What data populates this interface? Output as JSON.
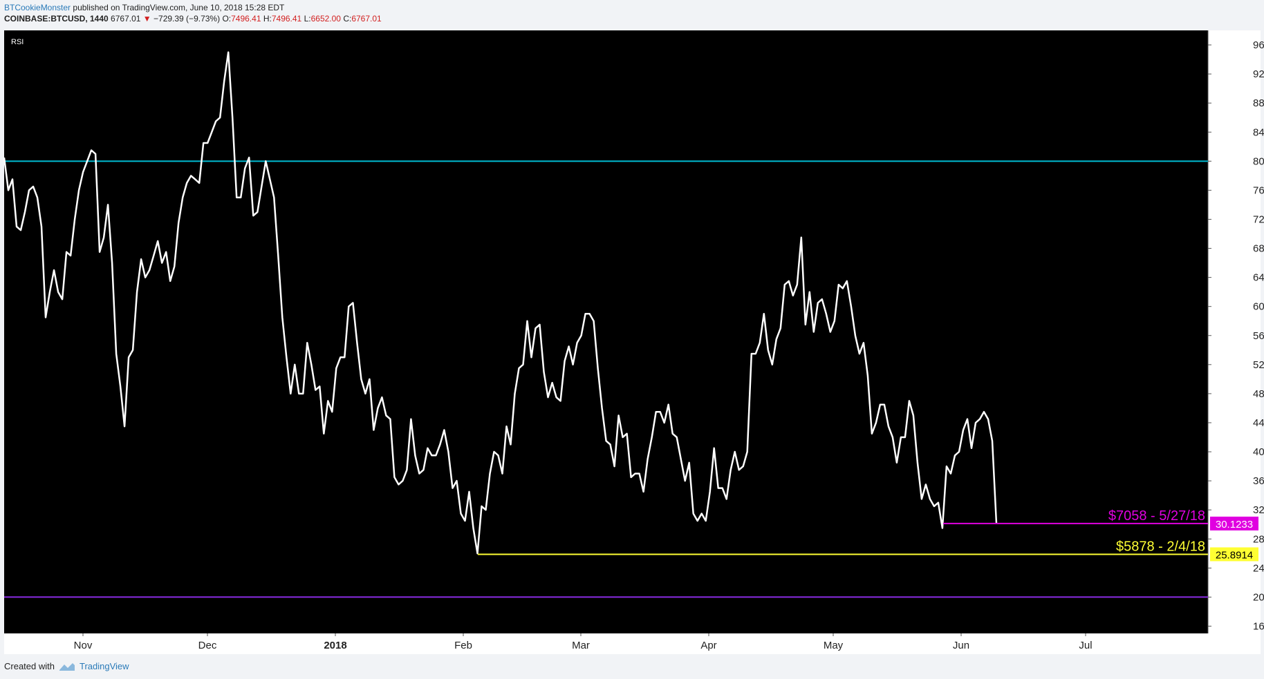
{
  "header": {
    "author": "BTCookieMonster",
    "published": "published on TradingView.com, June 10, 2018 15:28 EDT",
    "symbol": "COINBASE:BTCUSD, 1440",
    "last": "6767.01",
    "change": "−729.39 (−9.73%)",
    "o_label": "O:",
    "o": "7496.41",
    "h_label": "H:",
    "h": "7496.41",
    "l_label": "L:",
    "l": "6652.00",
    "c_label": "C:",
    "c": "6767.01"
  },
  "footer": {
    "created": "Created with",
    "brand": "TradingView"
  },
  "colors": {
    "background": "#000000",
    "line": "#ffffff",
    "overbought": "#00bcd4",
    "oversold": "#8a2be2",
    "may_level": "#e000e0",
    "feb_level": "#ffff33"
  },
  "chart_data": {
    "type": "line",
    "title": "RSI",
    "ylim": [
      15.0,
      98.0
    ],
    "y_ticks": [
      "96.0000",
      "92.0000",
      "88.0000",
      "84.0000",
      "80.0000",
      "76.0000",
      "72.0000",
      "68.0000",
      "64.0000",
      "60.0000",
      "56.0000",
      "52.0000",
      "48.0000",
      "44.0000",
      "40.0000",
      "36.0000",
      "32.0000",
      "28.0000",
      "24.0000",
      "20.0000",
      "16.0000"
    ],
    "x_ticks": [
      "Nov",
      "Dec",
      "2018",
      "Feb",
      "Mar",
      "Apr",
      "May",
      "Jun",
      "Jul"
    ],
    "reference_lines": [
      {
        "name": "overbought",
        "value": 80
      },
      {
        "name": "oversold",
        "value": 20
      }
    ],
    "levels": [
      {
        "label": "$7058 - 5/27/18",
        "value": 30.1233,
        "badge": "30.1233",
        "from": "2018-05-27"
      },
      {
        "label": "$5878 - 2/4/18",
        "value": 25.8914,
        "badge": "25.8914",
        "from": "2018-02-04"
      }
    ],
    "series": [
      {
        "values": [
          80.5,
          76.0,
          77.5,
          71.0,
          70.5,
          73.0,
          76.0,
          76.5,
          75.0,
          71.0,
          58.5,
          62.0,
          65.0,
          62.0,
          61.0,
          67.5,
          67.0,
          72.0,
          76.0,
          78.5,
          80.0,
          81.5,
          81.0,
          67.5,
          69.5,
          74.0,
          66.0,
          53.5,
          49.0,
          43.5,
          53.0,
          54.0,
          62.0,
          66.5,
          64.0,
          65.0,
          67.0,
          69.0,
          66.0,
          67.5,
          63.5,
          65.5,
          71.5,
          75.0,
          77.0,
          78.0,
          77.5,
          77.0,
          82.5,
          82.5,
          84.0,
          85.5,
          86.0,
          91.0,
          95.0,
          86.0,
          75.0,
          75.0,
          79.0,
          80.5,
          72.5,
          73.0,
          76.5,
          80.0,
          77.5,
          75.0,
          67.0,
          58.5,
          53.0,
          48.0,
          52.0,
          48.0,
          48.0,
          55.0,
          52.0,
          48.5,
          49.0,
          42.5,
          47.0,
          45.5,
          51.5,
          53.0,
          53.0,
          60.0,
          60.5,
          55.0,
          50.0,
          48.0,
          50.0,
          43.0,
          46.0,
          47.5,
          45.0,
          44.5,
          36.5,
          35.5,
          36.0,
          37.5,
          44.5,
          39.5,
          37.0,
          37.5,
          40.5,
          39.5,
          39.5,
          41.0,
          43.0,
          40.0,
          35.0,
          36.0,
          31.5,
          30.5,
          34.5,
          29.5,
          26.0,
          32.5,
          32.0,
          37.0,
          40.0,
          39.5,
          37.0,
          43.5,
          41.0,
          48.0,
          51.5,
          52.0,
          58.0,
          53.0,
          57.0,
          57.5,
          51.0,
          47.5,
          49.5,
          47.5,
          47.0,
          52.5,
          54.5,
          52.0,
          55.0,
          56.0,
          59.0,
          59.0,
          58.0,
          51.5,
          46.0,
          41.5,
          41.0,
          38.0,
          45.0,
          42.0,
          42.5,
          36.5,
          37.0,
          37.0,
          34.5,
          39.0,
          42.0,
          45.5,
          45.5,
          44.0,
          46.5,
          42.5,
          42.0,
          39.0,
          36.0,
          38.5,
          31.5,
          30.5,
          31.5,
          30.5,
          34.5,
          40.5,
          35.0,
          35.0,
          33.5,
          37.5,
          40.0,
          37.5,
          38.0,
          40.0,
          53.5,
          53.5,
          55.0,
          59.0,
          54.0,
          52.0,
          55.5,
          57.0,
          63.0,
          63.5,
          61.5,
          63.0,
          69.5,
          57.5,
          62.0,
          56.5,
          60.5,
          61.0,
          59.0,
          56.5,
          58.0,
          63.0,
          62.5,
          63.5,
          60.0,
          56.0,
          53.5,
          55.0,
          50.5,
          42.5,
          44.0,
          46.5,
          46.5,
          43.5,
          42.0,
          38.5,
          42.0,
          42.0,
          47.0,
          45.0,
          38.5,
          33.5,
          35.5,
          33.5,
          32.5,
          33.0,
          29.5,
          38.0,
          37.0,
          39.5,
          40.0,
          43.0,
          44.5,
          40.5,
          44.0,
          44.5,
          45.5,
          44.5,
          41.5,
          30.1233
        ]
      }
    ]
  }
}
